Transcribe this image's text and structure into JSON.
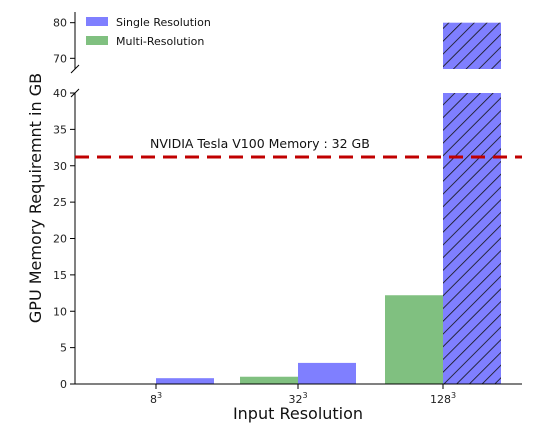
{
  "chart_data": {
    "type": "bar",
    "ylabel": "GPU Memory Requiremnt in GB",
    "xlabel": "Input Resolution",
    "categories": [
      {
        "base": "8",
        "exp": "3"
      },
      {
        "base": "32",
        "exp": "3"
      },
      {
        "base": "128",
        "exp": "3"
      }
    ],
    "series": [
      {
        "name": "Multi-Resolution",
        "color": "#80c080",
        "values": [
          0,
          1.0,
          12.2
        ]
      },
      {
        "name": "Single Resolution",
        "color": "#7f7fff",
        "values": [
          0.8,
          2.9,
          80
        ],
        "hatched": [
          false,
          false,
          true
        ]
      }
    ],
    "broken_axis": {
      "lower_range": [
        0,
        40
      ],
      "upper_range": [
        67,
        83
      ],
      "lower_ticks": [
        0,
        5,
        10,
        15,
        20,
        25,
        30,
        35,
        40
      ],
      "upper_ticks": [
        70,
        80
      ]
    },
    "reference_line": {
      "value": 31.2,
      "label": "NVIDIA Tesla V100 Memory : 32 GB",
      "color": "#c00000",
      "style": "dashed"
    },
    "legend_position": "top-left"
  }
}
